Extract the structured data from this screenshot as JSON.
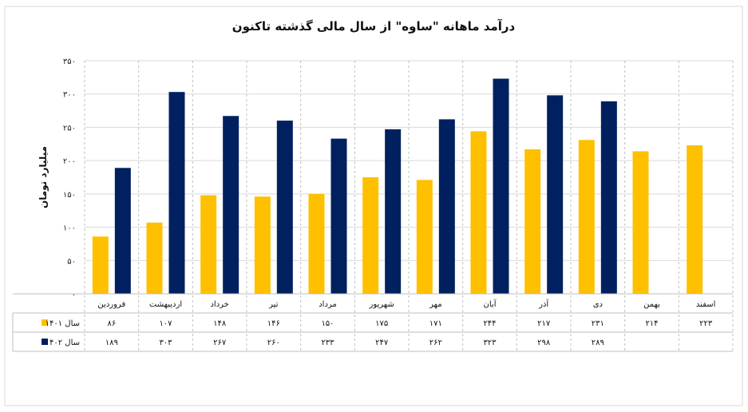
{
  "chart_data": {
    "type": "bar",
    "title": "درآمد ماهانه \"ساوه\" از سال مالی گذشته تاکنون",
    "ylabel": "میلیارد تومان",
    "ylim": [
      0,
      350
    ],
    "yticks": [
      "۰",
      "۵۰",
      "۱۰۰",
      "۱۵۰",
      "۲۰۰",
      "۲۵۰",
      "۳۰۰",
      "۳۵۰"
    ],
    "ytick_values": [
      0,
      50,
      100,
      150,
      200,
      250,
      300,
      350
    ],
    "grid": true,
    "legend": "table-left",
    "categories": [
      "فروردین",
      "اردیبهشت",
      "خرداد",
      "تیر",
      "مرداد",
      "شهریور",
      "مهر",
      "آبان",
      "آذر",
      "دی",
      "بهمن",
      "اسفند"
    ],
    "series": [
      {
        "name": "سال ۱۴۰۱",
        "color": "#FFC000",
        "values": [
          86,
          107,
          148,
          146,
          150,
          175,
          171,
          244,
          217,
          231,
          214,
          223
        ],
        "labels": [
          "۸۶",
          "۱۰۷",
          "۱۴۸",
          "۱۴۶",
          "۱۵۰",
          "۱۷۵",
          "۱۷۱",
          "۲۴۴",
          "۲۱۷",
          "۲۳۱",
          "۲۱۴",
          "۲۲۳"
        ]
      },
      {
        "name": "سال ۱۴۰۲",
        "color": "#002060",
        "values": [
          189,
          303,
          267,
          260,
          233,
          247,
          262,
          323,
          298,
          289,
          null,
          null
        ],
        "labels": [
          "۱۸۹",
          "۳۰۳",
          "۲۶۷",
          "۲۶۰",
          "۲۳۳",
          "۲۴۷",
          "۲۶۲",
          "۳۲۳",
          "۲۹۸",
          "۲۸۹",
          "",
          ""
        ]
      }
    ]
  }
}
